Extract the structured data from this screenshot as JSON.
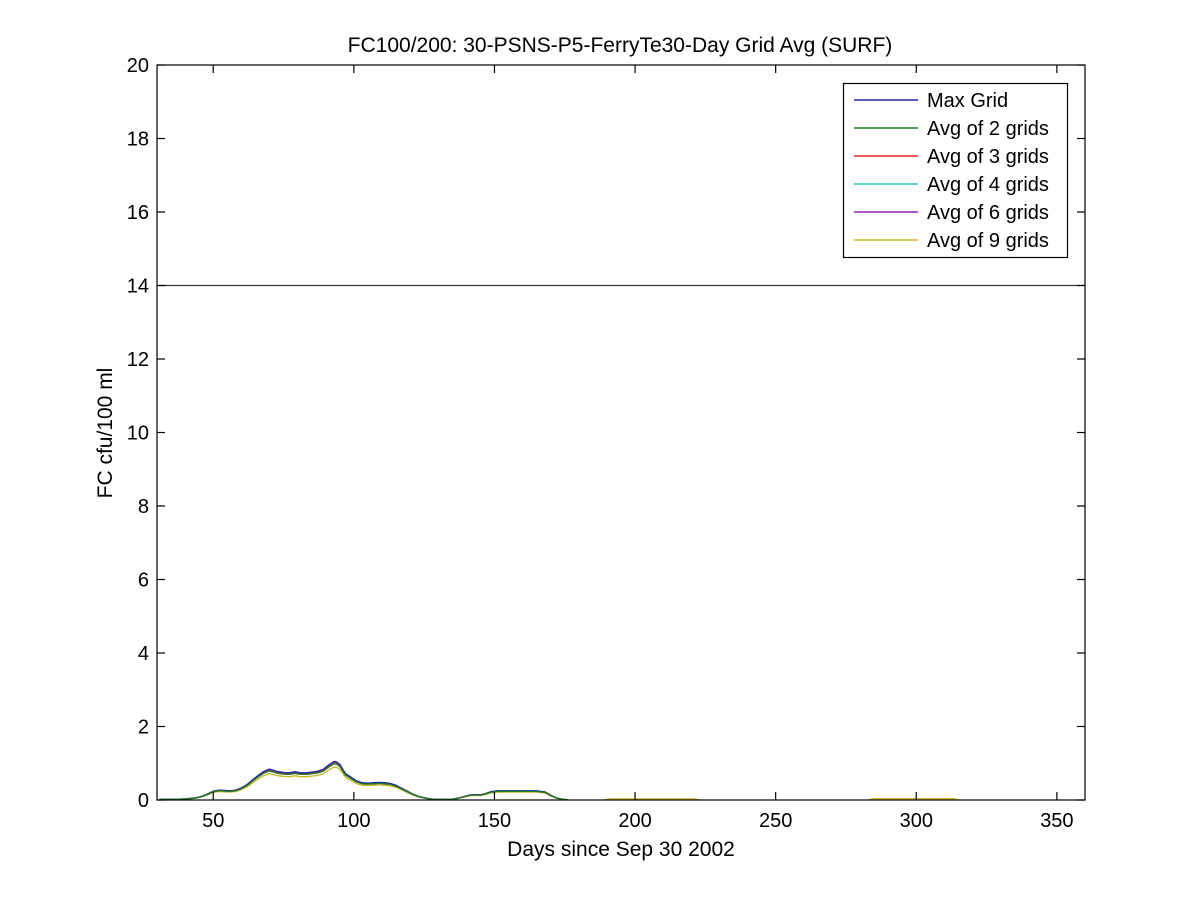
{
  "figure": {
    "background": "#ffffff",
    "axis_color": "#000000"
  },
  "chart_data": {
    "type": "line",
    "title": "FC100/200: 30-PSNS-P5-FerryTe30-Day Grid Avg (SURF)",
    "xlabel": "Days since Sep 30 2002",
    "ylabel": "FC cfu/100 ml",
    "xlim": [
      30,
      360
    ],
    "ylim": [
      0,
      20
    ],
    "xticks": [
      50,
      100,
      150,
      200,
      250,
      300,
      350
    ],
    "yticks": [
      0,
      2,
      4,
      6,
      8,
      10,
      12,
      14,
      16,
      18,
      20
    ],
    "grid": false,
    "legend_position": "top-right",
    "threshold_line": {
      "y": 14,
      "color": "#3a3a3a"
    },
    "series": [
      {
        "name": "Max Grid",
        "color": "#2222aa",
        "scale": 1.0
      },
      {
        "name": "Avg of 2 grids",
        "color": "#1e7b1e",
        "scale": 0.94
      },
      {
        "name": "Avg of 3 grids",
        "color": "#e02020",
        "scale": 0.985
      },
      {
        "name": "Avg of 4 grids",
        "color": "#20c8c8",
        "scale": 0.96
      },
      {
        "name": "Avg of 6 grids",
        "color": "#9020c0",
        "scale": 0.945
      },
      {
        "name": "Avg of 9 grids",
        "color": "#ccb424",
        "scale": 0.855
      }
    ],
    "draw_order": [
      5,
      4,
      3,
      2,
      0,
      1
    ],
    "base_curve": [
      [
        31,
        0.02
      ],
      [
        34,
        0.02
      ],
      [
        37,
        0.02
      ],
      [
        40,
        0.03
      ],
      [
        43,
        0.05
      ],
      [
        45,
        0.08
      ],
      [
        47,
        0.13
      ],
      [
        49,
        0.2
      ],
      [
        50,
        0.24
      ],
      [
        52,
        0.27
      ],
      [
        54,
        0.26
      ],
      [
        56,
        0.25
      ],
      [
        58,
        0.27
      ],
      [
        60,
        0.33
      ],
      [
        62,
        0.42
      ],
      [
        64,
        0.55
      ],
      [
        66,
        0.67
      ],
      [
        68,
        0.78
      ],
      [
        70,
        0.84
      ],
      [
        71,
        0.82
      ],
      [
        73,
        0.77
      ],
      [
        75,
        0.75
      ],
      [
        77,
        0.74
      ],
      [
        79,
        0.77
      ],
      [
        81,
        0.74
      ],
      [
        83,
        0.74
      ],
      [
        85,
        0.76
      ],
      [
        87,
        0.78
      ],
      [
        89,
        0.83
      ],
      [
        91,
        0.95
      ],
      [
        93,
        1.05
      ],
      [
        94,
        1.03
      ],
      [
        95,
        0.97
      ],
      [
        96,
        0.85
      ],
      [
        97,
        0.72
      ],
      [
        99,
        0.62
      ],
      [
        101,
        0.52
      ],
      [
        103,
        0.47
      ],
      [
        105,
        0.46
      ],
      [
        107,
        0.47
      ],
      [
        109,
        0.48
      ],
      [
        111,
        0.47
      ],
      [
        113,
        0.45
      ],
      [
        115,
        0.4
      ],
      [
        117,
        0.32
      ],
      [
        119,
        0.24
      ],
      [
        121,
        0.16
      ],
      [
        123,
        0.1
      ],
      [
        125,
        0.06
      ],
      [
        127,
        0.03
      ],
      [
        129,
        0.02
      ],
      [
        132,
        0.015
      ],
      [
        135,
        0.02
      ],
      [
        137,
        0.05
      ],
      [
        139,
        0.09
      ],
      [
        141,
        0.13
      ],
      [
        143,
        0.15
      ],
      [
        145,
        0.14
      ],
      [
        147,
        0.18
      ],
      [
        149,
        0.23
      ],
      [
        151,
        0.25
      ],
      [
        156,
        0.25
      ],
      [
        161,
        0.25
      ],
      [
        165,
        0.25
      ],
      [
        168,
        0.22
      ],
      [
        170,
        0.13
      ],
      [
        172,
        0.06
      ],
      [
        174,
        0.02
      ],
      [
        176,
        0.005
      ]
    ],
    "extra_segments": [
      {
        "series": "Avg of 9 grids",
        "points": [
          [
            189,
            0.005
          ],
          [
            191,
            0.03
          ],
          [
            221,
            0.03
          ],
          [
            223,
            0.005
          ]
        ]
      },
      {
        "series": "Avg of 9 grids",
        "points": [
          [
            283,
            0.005
          ],
          [
            285,
            0.035
          ],
          [
            313,
            0.035
          ],
          [
            315,
            0.005
          ]
        ]
      }
    ]
  }
}
